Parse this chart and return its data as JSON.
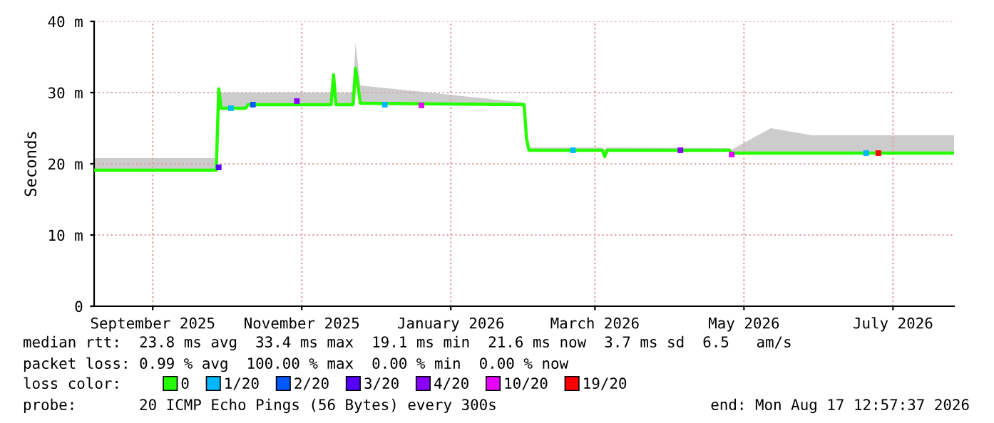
{
  "chart_data": {
    "type": "line",
    "ylabel": "Seconds",
    "xlim": [
      "2025-08-08",
      "2026-07-26"
    ],
    "xticks": [
      {
        "value": "2025-09-01",
        "label": "September 2025"
      },
      {
        "value": "2025-11-01",
        "label": "November 2025"
      },
      {
        "value": "2026-01-01",
        "label": "January 2026"
      },
      {
        "value": "2026-03-01",
        "label": "March 2026"
      },
      {
        "value": "2026-05-01",
        "label": "May 2026"
      },
      {
        "value": "2026-07-01",
        "label": "July 2026"
      }
    ],
    "ylim": [
      0,
      40
    ],
    "yticks": [
      0,
      {
        "value": 10,
        "label": "10 m"
      },
      {
        "value": 20,
        "label": "20 m"
      },
      {
        "value": 30,
        "label": "30 m"
      },
      {
        "value": 40,
        "label": "40 m"
      }
    ],
    "grid": true,
    "legend": "bottom",
    "series": [
      {
        "name": "0",
        "color": "#26ff00",
        "x": [
          "2025-08-08",
          "2025-09-27",
          "2025-09-28",
          "2025-09-29",
          "2025-10-09",
          "2025-10-10",
          "2025-11-13",
          "2025-11-14",
          "2025-11-15",
          "2025-11-22",
          "2025-11-23",
          "2025-11-25",
          "2026-01-31",
          "2026-02-01",
          "2026-02-02",
          "2026-03-04",
          "2026-03-05",
          "2026-03-06",
          "2026-04-25",
          "2026-04-26",
          "2026-05-12",
          "2026-05-29",
          "2026-07-26"
        ],
        "values": [
          19.1,
          19.1,
          30.5,
          27.8,
          27.8,
          28.3,
          28.3,
          32.5,
          28.3,
          28.3,
          33.4,
          28.5,
          28.3,
          23.5,
          21.9,
          21.9,
          21.0,
          21.9,
          21.9,
          21.5,
          21.5,
          21.5,
          21.5
        ],
        "lower": [
          19.1,
          19.1,
          30.5,
          27.8,
          27.8,
          28.3,
          28.3,
          32.5,
          28.3,
          28.3,
          33.4,
          28.5,
          28.3,
          23.5,
          21.9,
          21.9,
          21.0,
          21.9,
          21.9,
          21.5,
          21.5,
          21.5,
          21.5
        ],
        "upper": [
          20.8,
          20.8,
          31,
          30,
          30,
          30,
          30,
          32.8,
          30,
          30,
          37,
          31,
          28.6,
          24,
          22.3,
          22.3,
          22,
          22.3,
          22.2,
          22,
          25,
          24,
          24
        ]
      },
      {
        "name": "1/20",
        "type": "scatter",
        "color": "#00b8ff",
        "x": [
          "2025-10-03",
          "2025-12-05",
          "2026-02-20",
          "2026-06-20"
        ],
        "values": [
          27.8,
          28.3,
          21.9,
          21.5
        ]
      },
      {
        "name": "2/20",
        "type": "scatter",
        "color": "#0059ff",
        "x": [
          "2025-10-12"
        ],
        "values": [
          28.3
        ]
      },
      {
        "name": "3/20",
        "type": "scatter",
        "color": "#5500ff",
        "x": [
          "2025-09-28"
        ],
        "values": [
          19.5
        ]
      },
      {
        "name": "4/20",
        "type": "scatter",
        "color": "#8a00ff",
        "x": [
          "2025-10-30",
          "2026-04-05"
        ],
        "values": [
          28.8,
          21.9
        ]
      },
      {
        "name": "10/20",
        "type": "scatter",
        "color": "#e600ff",
        "x": [
          "2025-12-20",
          "2026-04-26"
        ],
        "values": [
          28.2,
          21.3
        ]
      },
      {
        "name": "19/20",
        "type": "scatter",
        "color": "#ff0000",
        "x": [
          "2026-06-25"
        ],
        "values": [
          21.5
        ]
      }
    ],
    "annotations": [
      "median rtt:  23.8 ms avg  33.4 ms max  19.1 ms min  21.6 ms now  3.7 ms sd  6.5   am/s",
      "packet loss: 0.99 % avg  100.00 % max  0.00 % min  0.00 % now",
      "loss color:",
      "probe:       20 ICMP Echo Pings (56 Bytes) every 300s",
      "end: Mon Aug 17 12:57:37 2026"
    ]
  }
}
